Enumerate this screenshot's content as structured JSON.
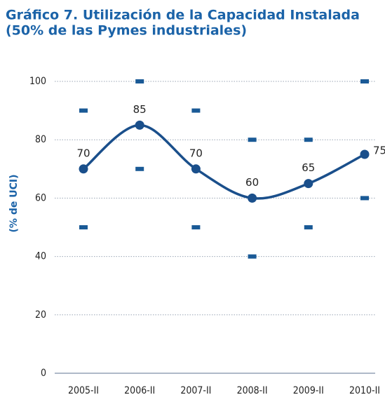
{
  "chart_data": {
    "type": "line",
    "title": [
      "Gráfico 7. Utilización de la Capacidad Instalada",
      "(50% de las Pymes industriales)"
    ],
    "y_label": "(% de UCI)",
    "categories": [
      "2005-II",
      "2006-II",
      "2007-II",
      "2008-II",
      "2009-II",
      "2010-II"
    ],
    "values": [
      70,
      85,
      70,
      60,
      65,
      75
    ],
    "color": "#1a4f8b",
    "markers": [
      {
        "color": "#1a5a96",
        "values": [
          90,
          100,
          90,
          80,
          80,
          100
        ]
      },
      {
        "color": "#1a5a96",
        "values": [
          50,
          70,
          50,
          40,
          50,
          60
        ]
      }
    ],
    "ylim": [
      0,
      100
    ],
    "yticks": [
      0,
      20,
      40,
      60,
      80,
      100
    ],
    "grid": true
  }
}
